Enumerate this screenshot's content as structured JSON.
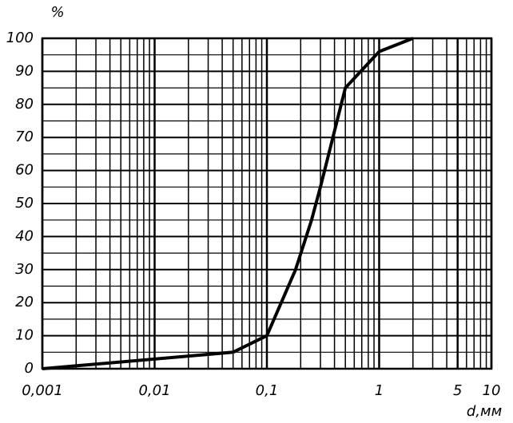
{
  "chart_data": {
    "type": "line",
    "y_axis_label": "%",
    "x_axis_label": "d,мм",
    "x": [
      0.001,
      0.05,
      0.1,
      0.18,
      0.25,
      0.3,
      0.5,
      1,
      2
    ],
    "series": [
      {
        "name": null,
        "color": "#000000",
        "values": [
          0,
          5,
          10,
          30,
          45,
          55,
          85,
          96,
          100
        ]
      }
    ],
    "xscale": "log",
    "xlim": [
      0.001,
      10
    ],
    "xticks": [
      {
        "value": 0.001,
        "label": "0,001"
      },
      {
        "value": 0.01,
        "label": "0,01"
      },
      {
        "value": 0.1,
        "label": "0,1"
      },
      1,
      5,
      10
    ],
    "ylim": [
      0,
      100
    ],
    "yticks": [
      0,
      10,
      20,
      30,
      40,
      50,
      60,
      70,
      80,
      90,
      100
    ],
    "grid": true
  }
}
